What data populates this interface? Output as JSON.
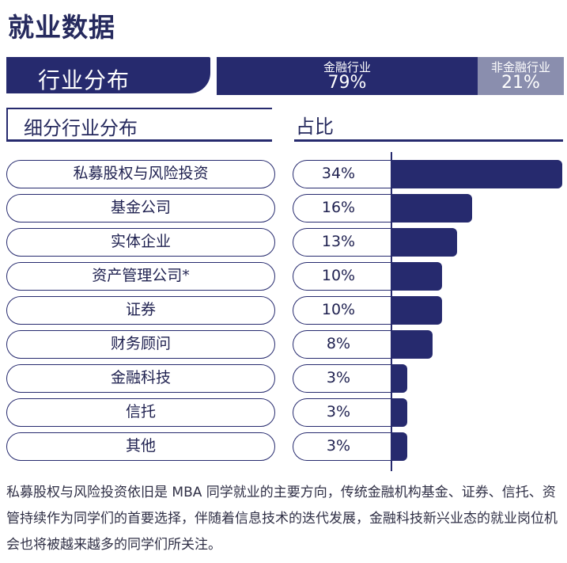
{
  "page": {
    "title": "就业数据"
  },
  "industry": {
    "label": "行业分布",
    "financial": {
      "name": "金融行业",
      "value": "79%",
      "share": 79
    },
    "non_financial": {
      "name": "非金融行业",
      "value": "21%",
      "share": 21
    }
  },
  "headers": {
    "left": "细分行业分布",
    "right": "占比"
  },
  "chart_data": {
    "type": "bar",
    "orientation": "horizontal",
    "categories": [
      "私募股权与风险投资",
      "基金公司",
      "实体企业",
      "资产管理公司*",
      "证券",
      "财务顾问",
      "金融科技",
      "信托",
      "其他"
    ],
    "values": [
      34,
      16,
      13,
      10,
      10,
      8,
      3,
      3,
      3
    ],
    "value_labels": [
      "34%",
      "16%",
      "13%",
      "10%",
      "10%",
      "8%",
      "3%",
      "3%",
      "3%"
    ],
    "bar_color": "#262a6e"
  },
  "caption": "私募股权与风险投资依旧是 MBA 同学就业的主要方向，传统金融机构基金、证券、信托、资管持续作为同学们的首要选择，伴随着信息技术的迭代发展，金融科技新兴业态的就业岗位机会也将被越来越多的同学们所关注。"
}
